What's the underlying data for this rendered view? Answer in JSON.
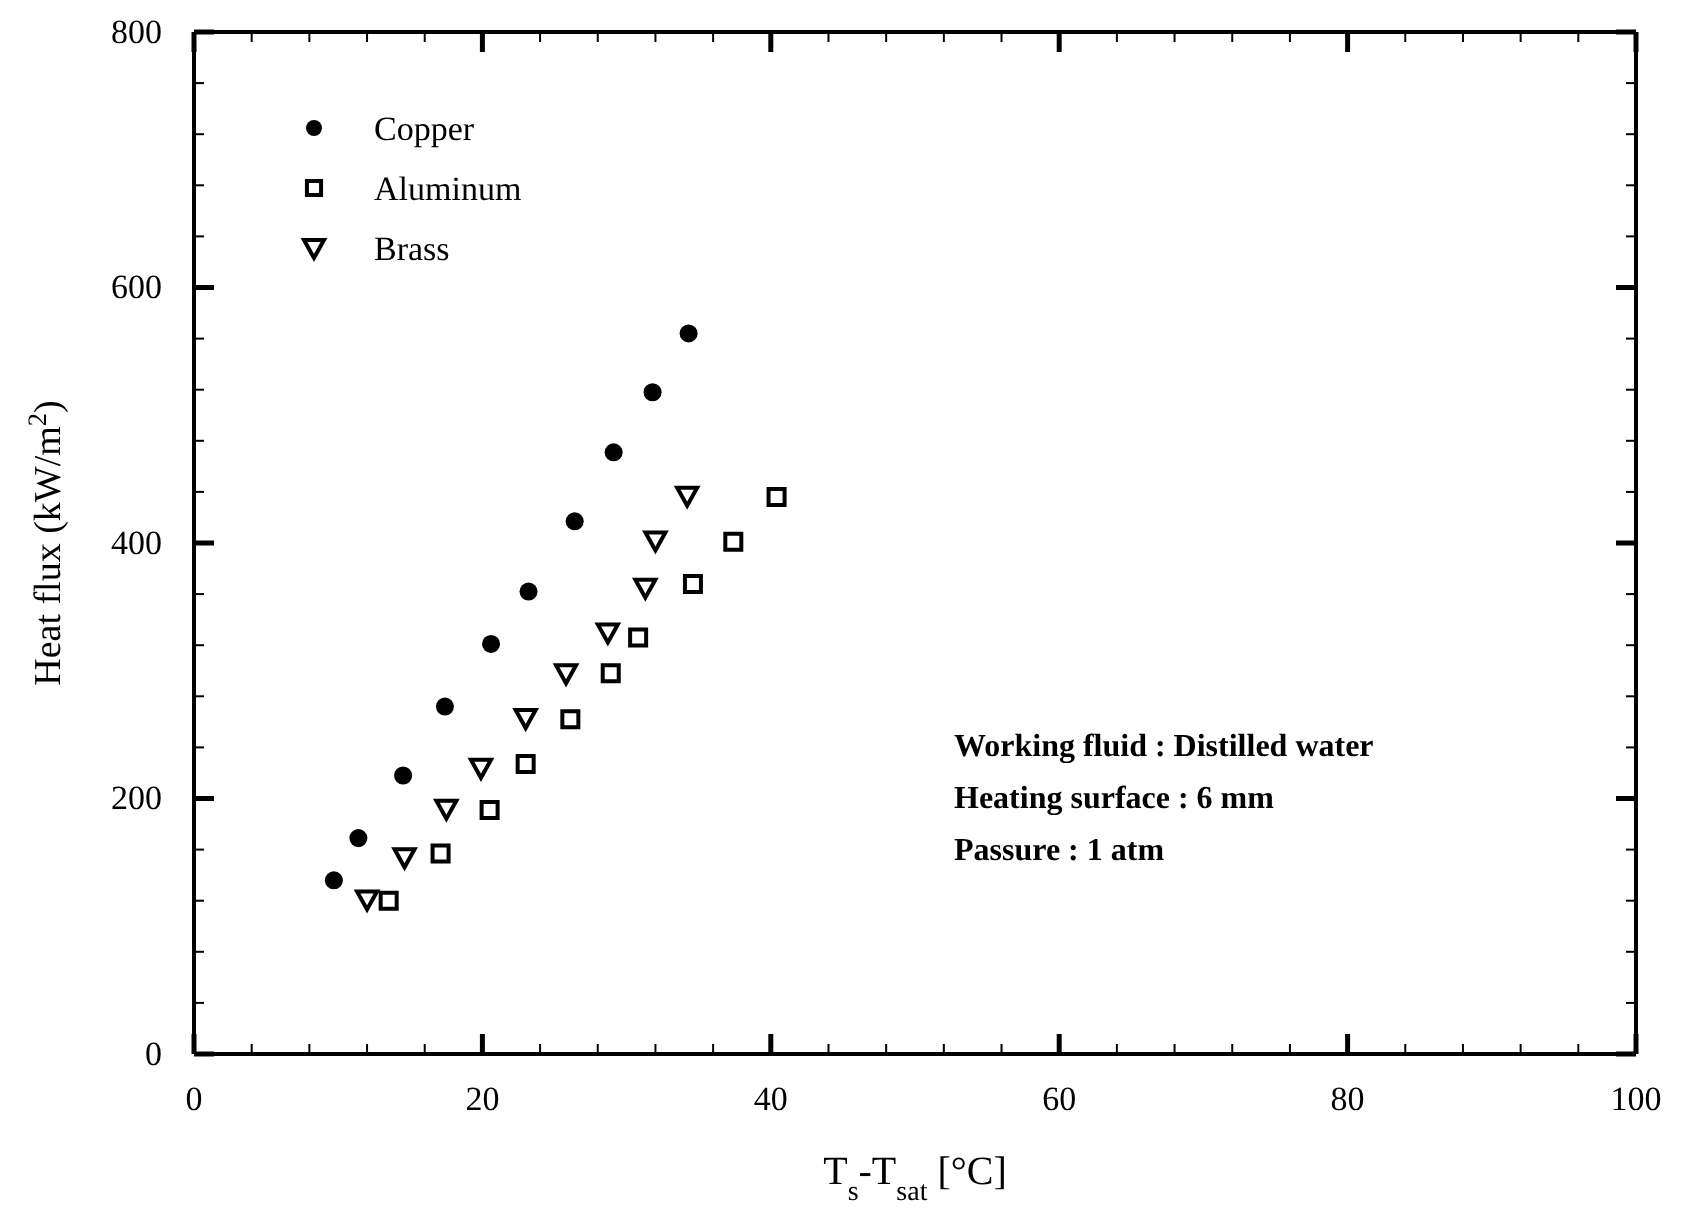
{
  "chart_data": {
    "type": "scatter",
    "xlabel": "T$_{s}$-T$_{sat}$ [°C]",
    "ylabel": "Heat flux (kW/m$^{2}$)",
    "xlim": [
      0,
      100
    ],
    "ylim": [
      0,
      800
    ],
    "xticks": [
      0,
      {
        "value": 4,
        "label": null
      },
      {
        "value": 8,
        "label": null
      },
      {
        "value": 12,
        "label": null
      },
      {
        "value": 16,
        "label": null
      },
      20,
      {
        "value": 24,
        "label": null
      },
      {
        "value": 28,
        "label": null
      },
      {
        "value": 32,
        "label": null
      },
      {
        "value": 36,
        "label": null
      },
      40,
      {
        "value": 44,
        "label": null
      },
      {
        "value": 48,
        "label": null
      },
      {
        "value": 52,
        "label": null
      },
      {
        "value": 56,
        "label": null
      },
      60,
      {
        "value": 64,
        "label": null
      },
      {
        "value": 68,
        "label": null
      },
      {
        "value": 72,
        "label": null
      },
      {
        "value": 76,
        "label": null
      },
      80,
      {
        "value": 84,
        "label": null
      },
      {
        "value": 88,
        "label": null
      },
      {
        "value": 92,
        "label": null
      },
      {
        "value": 96,
        "label": null
      },
      100
    ],
    "yticks": [
      0,
      {
        "value": 40,
        "label": null
      },
      {
        "value": 80,
        "label": null
      },
      {
        "value": 120,
        "label": null
      },
      {
        "value": 160,
        "label": null
      },
      200,
      {
        "value": 240,
        "label": null
      },
      {
        "value": 280,
        "label": null
      },
      {
        "value": 320,
        "label": null
      },
      {
        "value": 360,
        "label": null
      },
      400,
      {
        "value": 440,
        "label": null
      },
      {
        "value": 480,
        "label": null
      },
      {
        "value": 520,
        "label": null
      },
      {
        "value": 560,
        "label": null
      },
      600,
      {
        "value": 640,
        "label": null
      },
      {
        "value": 680,
        "label": null
      },
      {
        "value": 720,
        "label": null
      },
      {
        "value": 760,
        "label": null
      },
      800
    ],
    "legend": "top left",
    "grid": false,
    "series": [
      {
        "name": "Copper",
        "color": "#000000",
        "marker": "circle",
        "x": [
          9.7,
          11.4,
          14.5,
          17.4,
          20.6,
          23.2,
          26.4,
          29.1,
          31.8,
          34.3
        ],
        "values": [
          136,
          169,
          218,
          272,
          321,
          362,
          417,
          471,
          518,
          564
        ]
      },
      {
        "name": "Aluminum",
        "color": "#000000",
        "marker": "square",
        "x": [
          13.5,
          17.1,
          20.5,
          23.0,
          26.1,
          28.9,
          30.8,
          34.6,
          37.4,
          40.4
        ],
        "values": [
          120,
          157,
          191,
          227,
          262,
          298,
          326,
          368,
          401,
          436
        ]
      },
      {
        "name": "Brass",
        "color": "#000000",
        "marker": "triangle",
        "x": [
          12.0,
          14.6,
          17.5,
          19.9,
          23.0,
          25.8,
          28.7,
          31.3,
          32.0,
          34.2
        ],
        "values": [
          121,
          154,
          192,
          224,
          263,
          298,
          330,
          365,
          402,
          437
        ]
      }
    ],
    "annotations": [
      "Working fluid : Distilled water",
      "Heating surface : 6 mm",
      "Passure : 1 atm"
    ]
  }
}
